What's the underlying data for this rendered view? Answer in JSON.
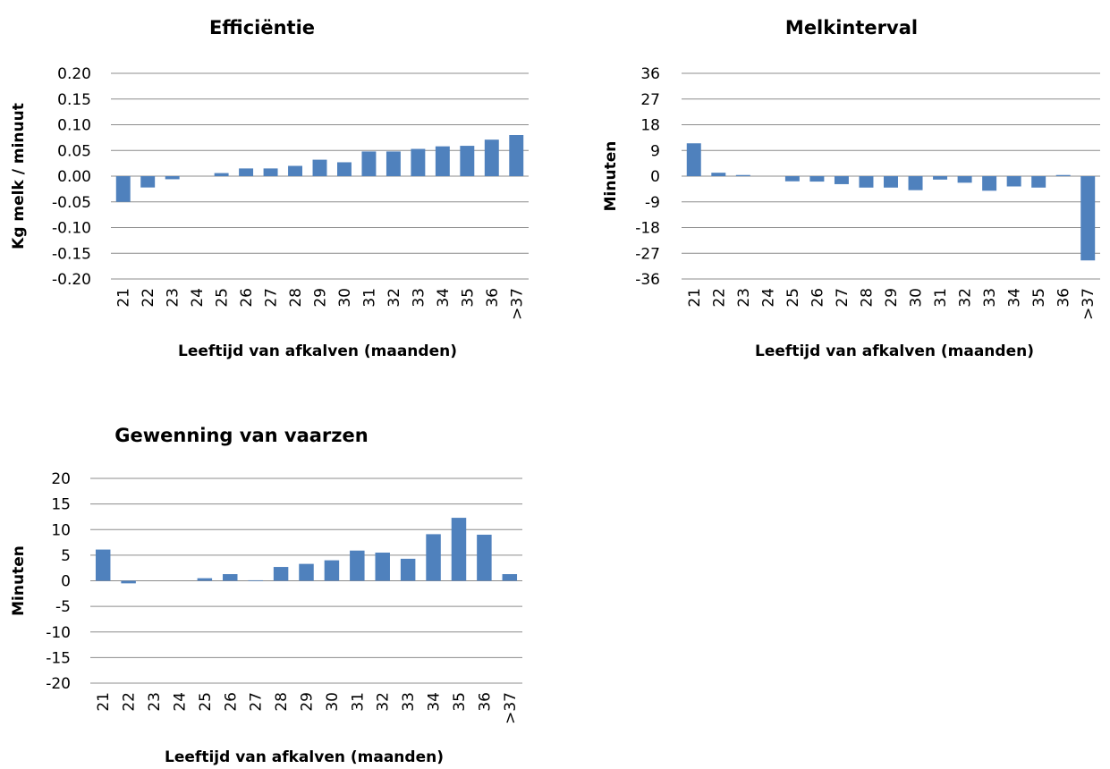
{
  "chart_data": [
    {
      "type": "bar",
      "title": "Efficiëntie",
      "xlabel": "Leeftijd van afkalven (maanden)",
      "ylabel": "Kg melk / minuut",
      "categories": [
        "21",
        "22",
        "23",
        "24",
        "25",
        "26",
        "27",
        "28",
        "29",
        "30",
        "31",
        "32",
        "33",
        "34",
        "35",
        "36",
        ">37"
      ],
      "values": [
        -0.05,
        -0.022,
        -0.006,
        0,
        0.006,
        0.015,
        0.015,
        0.02,
        0.032,
        0.027,
        0.048,
        0.048,
        0.053,
        0.058,
        0.059,
        0.071,
        0.08
      ],
      "ylim": [
        -0.2,
        0.2
      ],
      "yticks": [
        "0.20",
        "0.15",
        "0.10",
        "0.05",
        "0.00",
        "-0.05",
        "-0.10",
        "-0.15",
        "-0.20"
      ],
      "bar_color": "#4f81bd",
      "grid": true,
      "legend": "none"
    },
    {
      "type": "bar",
      "title": "Melkinterval",
      "xlabel": "Leeftijd van afkalven (maanden)",
      "ylabel": "Minuten",
      "categories": [
        "21",
        "22",
        "23",
        "24",
        "25",
        "26",
        "27",
        "28",
        "29",
        "30",
        "31",
        "32",
        "33",
        "34",
        "35",
        "36",
        ">37"
      ],
      "values": [
        11.5,
        1.2,
        0.4,
        0,
        -1.8,
        -1.9,
        -2.8,
        -4.0,
        -4.0,
        -4.9,
        -1.2,
        -2.3,
        -5.1,
        -3.6,
        -4.0,
        0.4,
        -29.5
      ],
      "ylim": [
        -36,
        36
      ],
      "yticks": [
        "36",
        "27",
        "18",
        "9",
        "0",
        "-9",
        "-18",
        "-27",
        "-36"
      ],
      "bar_color": "#4f81bd",
      "grid": true,
      "legend": "none"
    },
    {
      "type": "bar",
      "title": "Gewenning van vaarzen",
      "xlabel": "Leeftijd van afkalven (maanden)",
      "ylabel": "Minuten",
      "categories": [
        "21",
        "22",
        "23",
        "24",
        "25",
        "26",
        "27",
        "28",
        "29",
        "30",
        "31",
        "32",
        "33",
        "34",
        "35",
        "36",
        ">37"
      ],
      "values": [
        6.1,
        -0.5,
        0,
        0,
        0.5,
        1.3,
        0.1,
        2.7,
        3.3,
        4.0,
        5.9,
        5.5,
        4.3,
        9.1,
        12.3,
        9.0,
        1.3
      ],
      "ylim": [
        -20,
        20
      ],
      "yticks": [
        "20",
        "15",
        "10",
        "5",
        "0",
        "-5",
        "-10",
        "-15",
        "-20"
      ],
      "bar_color": "#4f81bd",
      "grid": true,
      "legend": "none"
    }
  ]
}
